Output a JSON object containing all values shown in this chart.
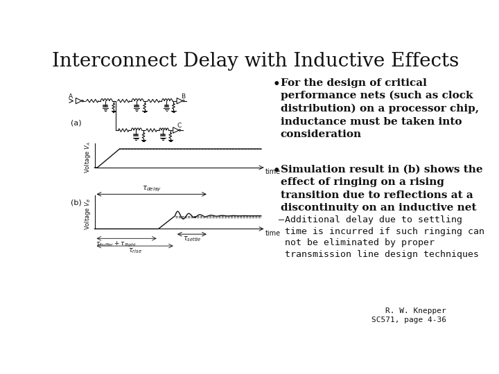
{
  "title": "Interconnect Delay with Inductive Effects",
  "title_fontsize": 20,
  "background_color": "#ffffff",
  "text_color": "#111111",
  "bullet1_text": "For the design of critical\nperformance nets (such as clock\ndistribution) on a processor chip,\ninductance must be taken into\nconsideration",
  "bullet2_text": "Simulation result in (b) shows the\neffect of ringing on a rising\ntransition due to reflections at a\ndiscontinuity on an inductive net",
  "sub_bullet_text": "Additional delay due to settling\ntime is incurred if such ringing can\nnot be eliminated by proper\ntransmission line design techniques",
  "footnote": "R. W. Knepper\nSC571, page 4-36",
  "bullet_fontsize": 11,
  "sub_bullet_fontsize": 9.5,
  "footnote_fontsize": 8,
  "col": "#111111"
}
